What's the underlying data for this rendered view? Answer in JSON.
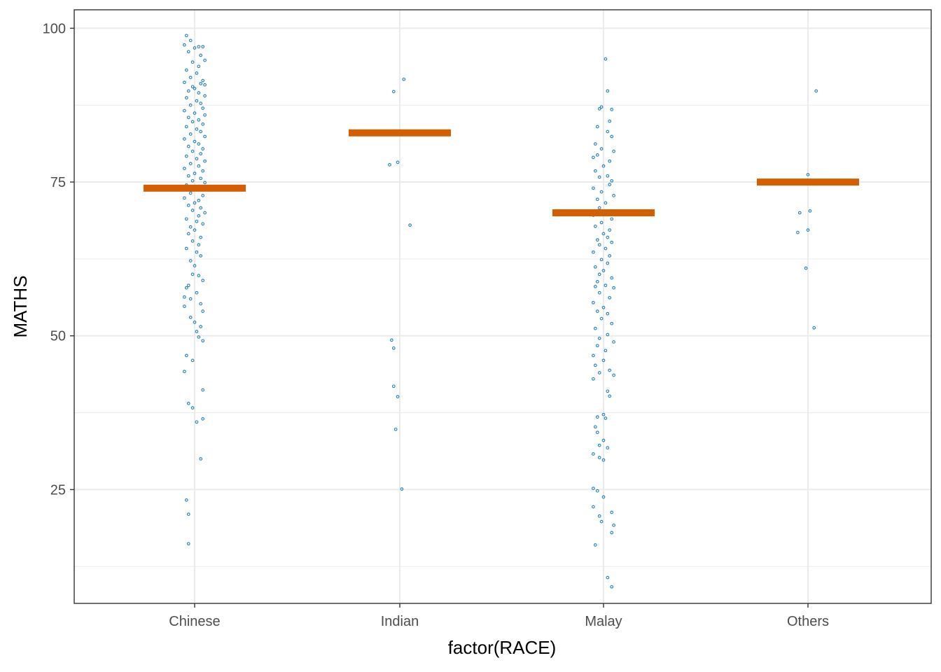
{
  "chart_data": {
    "type": "scatter",
    "xlabel": "factor(RACE)",
    "ylabel": "MATHS",
    "categories": [
      "Chinese",
      "Indian",
      "Malay",
      "Others"
    ],
    "y_ticks": [
      25,
      50,
      75,
      100
    ],
    "y_tick_labels": [
      "25",
      "50",
      "75",
      "100"
    ],
    "ylim": [
      6.5,
      103
    ],
    "grid": true,
    "colors": {
      "points": "#1f7fb5",
      "mean_bar": "#d55e00",
      "grid": "#ebebeb",
      "panel_border": "#333333"
    },
    "means": [
      {
        "category": "Chinese",
        "value": 74.0
      },
      {
        "category": "Indian",
        "value": 83.0
      },
      {
        "category": "Malay",
        "value": 70.0
      },
      {
        "category": "Others",
        "value": 75.0
      }
    ],
    "points": {
      "Chinese": [
        [
          -0.04,
          98.8
        ],
        [
          -0.02,
          98.0
        ],
        [
          -0.05,
          97.3
        ],
        [
          0.02,
          97.0
        ],
        [
          0.04,
          97.0
        ],
        [
          0.0,
          96.8
        ],
        [
          -0.03,
          96.2
        ],
        [
          0.03,
          95.6
        ],
        [
          0.05,
          94.8
        ],
        [
          -0.01,
          94.5
        ],
        [
          0.02,
          93.8
        ],
        [
          -0.04,
          93.2
        ],
        [
          0.01,
          92.7
        ],
        [
          -0.02,
          92.0
        ],
        [
          0.04,
          91.5
        ],
        [
          -0.05,
          91.2
        ],
        [
          0.03,
          91.0
        ],
        [
          0.05,
          90.8
        ],
        [
          -0.01,
          90.5
        ],
        [
          0.0,
          90.2
        ],
        [
          -0.03,
          89.8
        ],
        [
          0.02,
          89.5
        ],
        [
          0.05,
          89.0
        ],
        [
          -0.04,
          88.7
        ],
        [
          0.01,
          88.2
        ],
        [
          0.03,
          87.8
        ],
        [
          -0.02,
          87.5
        ],
        [
          0.04,
          87.0
        ],
        [
          -0.05,
          86.6
        ],
        [
          0.0,
          86.2
        ],
        [
          0.05,
          85.9
        ],
        [
          -0.03,
          85.5
        ],
        [
          0.02,
          85.1
        ],
        [
          -0.01,
          84.8
        ],
        [
          0.04,
          84.4
        ],
        [
          -0.04,
          84.0
        ],
        [
          0.01,
          83.6
        ],
        [
          0.03,
          83.2
        ],
        [
          -0.02,
          82.8
        ],
        [
          0.05,
          82.4
        ],
        [
          -0.05,
          82.0
        ],
        [
          0.0,
          81.6
        ],
        [
          0.02,
          81.2
        ],
        [
          -0.03,
          80.8
        ],
        [
          0.04,
          80.4
        ],
        [
          -0.01,
          80.0
        ],
        [
          0.03,
          79.6
        ],
        [
          -0.04,
          79.2
        ],
        [
          0.01,
          78.8
        ],
        [
          0.05,
          78.4
        ],
        [
          -0.02,
          78.0
        ],
        [
          0.02,
          77.6
        ],
        [
          -0.05,
          77.2
        ],
        [
          0.04,
          76.8
        ],
        [
          0.0,
          76.4
        ],
        [
          -0.03,
          76.0
        ],
        [
          0.03,
          75.6
        ],
        [
          -0.01,
          75.2
        ],
        [
          0.05,
          74.9
        ],
        [
          -0.04,
          74.5
        ],
        [
          0.01,
          73.8
        ],
        [
          -0.02,
          73.2
        ],
        [
          0.04,
          72.8
        ],
        [
          -0.05,
          72.4
        ],
        [
          0.02,
          72.0
        ],
        [
          0.0,
          71.6
        ],
        [
          -0.03,
          71.2
        ],
        [
          0.03,
          70.8
        ],
        [
          -0.01,
          70.4
        ],
        [
          0.05,
          70.0
        ],
        [
          0.02,
          69.5
        ],
        [
          -0.04,
          69.0
        ],
        [
          0.01,
          68.6
        ],
        [
          0.04,
          68.2
        ],
        [
          -0.02,
          67.7
        ],
        [
          0.0,
          67.2
        ],
        [
          -0.03,
          66.6
        ],
        [
          0.03,
          66.0
        ],
        [
          -0.01,
          65.4
        ],
        [
          0.02,
          64.8
        ],
        [
          -0.04,
          64.2
        ],
        [
          0.01,
          63.6
        ],
        [
          0.03,
          63.0
        ],
        [
          -0.02,
          62.2
        ],
        [
          0.0,
          61.4
        ],
        [
          -0.01,
          60.0
        ],
        [
          0.02,
          59.8
        ],
        [
          0.04,
          59.0
        ],
        [
          -0.03,
          58.2
        ],
        [
          -0.04,
          57.8
        ],
        [
          0.01,
          57.0
        ],
        [
          -0.05,
          56.3
        ],
        [
          -0.02,
          56.0
        ],
        [
          0.03,
          55.2
        ],
        [
          -0.05,
          54.8
        ],
        [
          0.04,
          54.0
        ],
        [
          -0.02,
          53.0
        ],
        [
          0.0,
          52.2
        ],
        [
          0.03,
          51.5
        ],
        [
          0.01,
          50.7
        ],
        [
          0.02,
          49.8
        ],
        [
          0.04,
          49.2
        ],
        [
          -0.04,
          46.8
        ],
        [
          -0.01,
          46.0
        ],
        [
          -0.05,
          44.2
        ],
        [
          0.04,
          41.2
        ],
        [
          -0.03,
          39.0
        ],
        [
          -0.01,
          38.3
        ],
        [
          0.04,
          36.5
        ],
        [
          0.01,
          36.0
        ],
        [
          0.03,
          30.0
        ],
        [
          -0.04,
          23.3
        ],
        [
          -0.03,
          21.0
        ],
        [
          -0.03,
          16.2
        ]
      ],
      "Indian": [
        [
          0.02,
          91.7
        ],
        [
          -0.03,
          89.7
        ],
        [
          -0.05,
          77.8
        ],
        [
          -0.01,
          78.2
        ],
        [
          0.05,
          68.0
        ],
        [
          -0.04,
          49.3
        ],
        [
          -0.03,
          48.0
        ],
        [
          -0.03,
          41.8
        ],
        [
          -0.01,
          40.1
        ],
        [
          -0.02,
          34.8
        ],
        [
          0.01,
          25.1
        ]
      ],
      "Malay": [
        [
          0.01,
          95.0
        ],
        [
          0.02,
          89.8
        ],
        [
          -0.01,
          87.2
        ],
        [
          -0.02,
          86.9
        ],
        [
          0.04,
          86.8
        ],
        [
          0.03,
          84.9
        ],
        [
          -0.03,
          84.0
        ],
        [
          0.02,
          83.2
        ],
        [
          0.04,
          82.4
        ],
        [
          -0.04,
          81.2
        ],
        [
          -0.01,
          80.4
        ],
        [
          0.05,
          80.0
        ],
        [
          -0.03,
          79.4
        ],
        [
          -0.05,
          79.0
        ],
        [
          0.03,
          78.4
        ],
        [
          0.0,
          77.6
        ],
        [
          -0.04,
          76.8
        ],
        [
          0.02,
          76.0
        ],
        [
          -0.02,
          75.8
        ],
        [
          0.04,
          75.2
        ],
        [
          0.03,
          74.6
        ],
        [
          -0.05,
          74.0
        ],
        [
          -0.01,
          73.4
        ],
        [
          0.05,
          72.8
        ],
        [
          -0.03,
          72.2
        ],
        [
          0.01,
          71.6
        ],
        [
          -0.02,
          70.8
        ],
        [
          0.02,
          70.2
        ],
        [
          -0.05,
          69.6
        ],
        [
          0.04,
          69.0
        ],
        [
          -0.01,
          68.4
        ],
        [
          -0.04,
          67.8
        ],
        [
          0.03,
          67.2
        ],
        [
          0.0,
          66.6
        ],
        [
          0.02,
          66.0
        ],
        [
          -0.03,
          65.6
        ],
        [
          0.04,
          65.2
        ],
        [
          -0.02,
          64.8
        ],
        [
          0.01,
          64.2
        ],
        [
          -0.05,
          63.6
        ],
        [
          0.03,
          63.0
        ],
        [
          -0.01,
          62.4
        ],
        [
          0.02,
          61.8
        ],
        [
          -0.04,
          61.2
        ],
        [
          0.0,
          60.6
        ],
        [
          -0.02,
          60.0
        ],
        [
          0.04,
          59.4
        ],
        [
          -0.03,
          58.8
        ],
        [
          0.01,
          58.2
        ],
        [
          -0.04,
          58.0
        ],
        [
          0.05,
          57.8
        ],
        [
          -0.02,
          57.0
        ],
        [
          0.03,
          56.2
        ],
        [
          -0.05,
          55.4
        ],
        [
          0.0,
          54.6
        ],
        [
          -0.03,
          54.0
        ],
        [
          0.02,
          53.6
        ],
        [
          -0.01,
          52.8
        ],
        [
          0.04,
          52.0
        ],
        [
          -0.04,
          51.2
        ],
        [
          0.02,
          50.2
        ],
        [
          -0.02,
          49.6
        ],
        [
          0.05,
          49.0
        ],
        [
          -0.03,
          48.4
        ],
        [
          0.01,
          47.6
        ],
        [
          -0.05,
          46.8
        ],
        [
          0.0,
          46.0
        ],
        [
          -0.04,
          45.2
        ],
        [
          0.03,
          44.4
        ],
        [
          -0.02,
          44.0
        ],
        [
          0.05,
          43.6
        ],
        [
          -0.05,
          43.0
        ],
        [
          0.02,
          41.0
        ],
        [
          0.03,
          40.2
        ],
        [
          0.0,
          37.2
        ],
        [
          -0.03,
          36.8
        ],
        [
          0.01,
          36.6
        ],
        [
          -0.04,
          35.2
        ],
        [
          -0.03,
          34.3
        ],
        [
          0.0,
          33.0
        ],
        [
          -0.02,
          32.2
        ],
        [
          0.02,
          31.8
        ],
        [
          -0.05,
          30.8
        ],
        [
          -0.02,
          30.2
        ],
        [
          0.0,
          29.8
        ],
        [
          -0.05,
          25.2
        ],
        [
          -0.03,
          24.8
        ],
        [
          0.0,
          23.8
        ],
        [
          -0.05,
          22.2
        ],
        [
          0.04,
          21.3
        ],
        [
          -0.02,
          20.7
        ],
        [
          -0.01,
          19.8
        ],
        [
          0.05,
          19.2
        ],
        [
          0.04,
          18.0
        ],
        [
          -0.04,
          16.0
        ],
        [
          0.02,
          10.7
        ],
        [
          0.04,
          9.2
        ]
      ],
      "Others": [
        [
          0.04,
          89.8
        ],
        [
          0.0,
          76.2
        ],
        [
          -0.04,
          70.0
        ],
        [
          0.01,
          70.3
        ],
        [
          -0.05,
          66.8
        ],
        [
          0.0,
          67.2
        ],
        [
          -0.01,
          61.0
        ],
        [
          0.03,
          51.3
        ]
      ]
    }
  }
}
